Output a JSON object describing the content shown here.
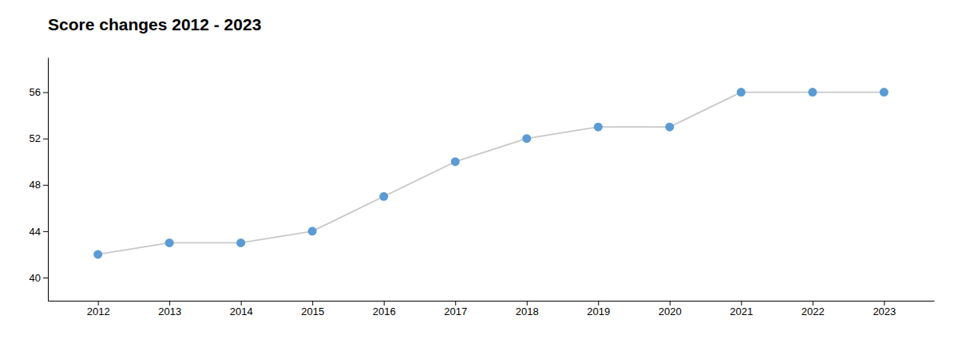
{
  "chart_data": {
    "type": "line",
    "title": "Score changes 2012 - 2023",
    "x": [
      2012,
      2013,
      2014,
      2015,
      2016,
      2017,
      2018,
      2019,
      2020,
      2021,
      2022,
      2023
    ],
    "values": [
      42,
      43,
      43,
      44,
      47,
      50,
      52,
      53,
      53,
      56,
      56,
      56
    ],
    "color": "#5b9bd5",
    "marker": "circle",
    "xlim": [
      2011.3,
      2023.7
    ],
    "xticks": [
      2012,
      2013,
      2014,
      2015,
      2016,
      2017,
      2018,
      2019,
      2020,
      2021,
      2022,
      2023
    ],
    "ylim": [
      38,
      59
    ],
    "yticks": [
      40,
      44,
      48,
      52,
      56
    ],
    "grid": false
  }
}
